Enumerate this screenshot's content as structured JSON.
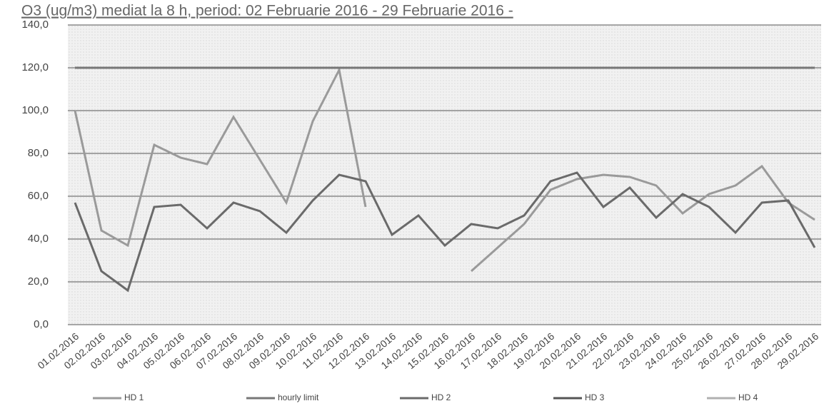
{
  "chart_data": {
    "type": "line",
    "title": "O3 (ug/m3) mediat la 8 h, period: 02 Februarie 2016 - 29 Februarie 2016 -",
    "categories": [
      "01.02.2016",
      "02.02.2016",
      "03.02.2016",
      "04.02.2016",
      "05.02.2016",
      "06.02.2016",
      "07.02.2016",
      "08.02.2016",
      "09.02.2016",
      "10.02.2016",
      "11.02.2016",
      "12.02.2016",
      "13.02.2016",
      "14.02.2016",
      "15.02.2016",
      "16.02.2016",
      "17.02.2016",
      "18.02.2016",
      "19.02.2016",
      "20.02.2016",
      "21.02.2016",
      "22.02.2016",
      "23.02.2016",
      "24.02.2016",
      "25.02.2016",
      "26.02.2016",
      "27.02.2016",
      "28.02.2016",
      "29.02.2016"
    ],
    "series": [
      {
        "name": "HD 1",
        "color": "#9a9a9a",
        "values": [
          100,
          44,
          37,
          84,
          78,
          75,
          97,
          77,
          57,
          95,
          119,
          55,
          null,
          null,
          null,
          25,
          36,
          47,
          63,
          68,
          70,
          69,
          65,
          52,
          61,
          65,
          74,
          57,
          49
        ]
      },
      {
        "name": "hourly limit",
        "color": "#777777",
        "values": [
          120,
          120,
          120,
          120,
          120,
          120,
          120,
          120,
          120,
          120,
          120,
          120,
          120,
          120,
          120,
          120,
          120,
          120,
          120,
          120,
          120,
          120,
          120,
          120,
          120,
          120,
          120,
          120,
          120
        ]
      },
      {
        "name": "HD 2",
        "color": "#6a6a6a",
        "values": [
          57,
          25,
          16,
          55,
          56,
          45,
          57,
          53,
          43,
          58,
          70,
          67,
          42,
          51,
          37,
          47,
          45,
          51,
          67,
          71,
          55,
          64,
          50,
          61,
          55,
          43,
          57,
          58,
          36
        ]
      },
      {
        "name": "HD 3",
        "color": "#555555",
        "values": [
          null,
          null,
          null,
          null,
          null,
          null,
          null,
          null,
          null,
          null,
          null,
          null,
          null,
          null,
          null,
          null,
          null,
          null,
          null,
          null,
          null,
          null,
          null,
          null,
          null,
          null,
          null,
          null,
          null
        ]
      },
      {
        "name": "HD 4",
        "color": "#b0b0b0",
        "values": [
          null,
          null,
          null,
          null,
          null,
          null,
          null,
          null,
          null,
          null,
          null,
          null,
          null,
          null,
          null,
          null,
          null,
          null,
          null,
          null,
          null,
          null,
          null,
          null,
          null,
          null,
          null,
          null,
          null
        ]
      }
    ],
    "ylim": [
      0,
      140
    ],
    "yticks": [
      {
        "value": 0,
        "label": "0,0"
      },
      {
        "value": 20,
        "label": "20,0"
      },
      {
        "value": 40,
        "label": "40,0"
      },
      {
        "value": 60,
        "label": "60,0"
      },
      {
        "value": 80,
        "label": "80,0"
      },
      {
        "value": 100,
        "label": "100,0"
      },
      {
        "value": 120,
        "label": "120,0"
      },
      {
        "value": 140,
        "label": "140,0"
      }
    ],
    "grid": true
  }
}
